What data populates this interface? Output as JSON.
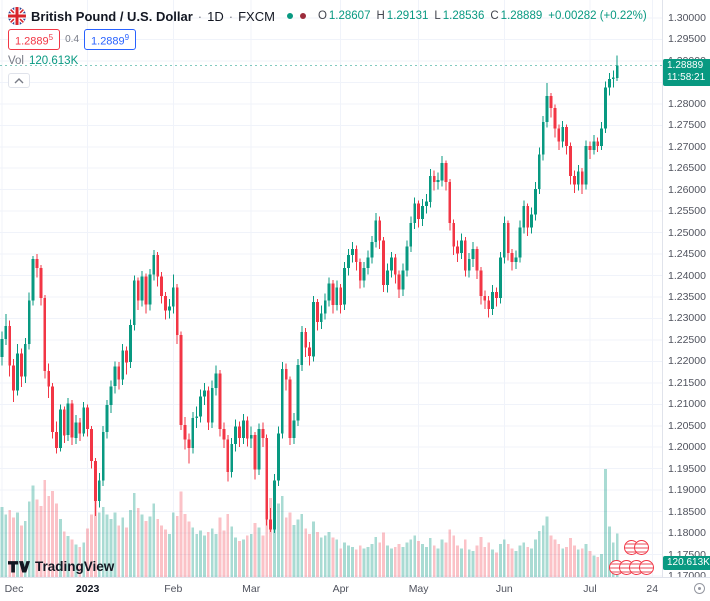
{
  "header": {
    "title": "British Pound / U.S. Dollar",
    "sep": "·",
    "interval": "1D",
    "exchange": "FXCM",
    "ohlc": {
      "o_label": "O",
      "o_value": "1.28607",
      "h_label": "H",
      "h_value": "1.29131",
      "l_label": "L",
      "l_value": "1.28536",
      "c_label": "C",
      "c_value": "1.28889",
      "change": "+0.00282 (+0.22%)"
    },
    "sell_main": "1.2889",
    "sell_sup": "5",
    "spread": "0.4",
    "buy_main": "1.2889",
    "buy_sup": "9",
    "vol_label": "Vol",
    "vol_value": "120.613K"
  },
  "price_scale": {
    "badge_price": "1.28889",
    "badge_countdown": "11:58:21",
    "volume_badge": "120.613K"
  },
  "footer": {
    "logo_text": "TradingView"
  },
  "colors": {
    "up": "#089981",
    "down": "#f23645",
    "buy_blue": "#2962ff",
    "sell_red": "#f23645"
  },
  "chart_data": {
    "type": "candlestick",
    "symbol": "GBPUSD",
    "title": "British Pound / U.S. Dollar, 1D, FXCM",
    "legend_volume": "Vol 120.613K",
    "columns": [
      "open",
      "high",
      "low",
      "close",
      "volume_k"
    ],
    "y_axis": {
      "min": 1.17,
      "max": 1.3,
      "step": 0.005
    },
    "vol_axis": {
      "max_k": 320
    },
    "slots": 170,
    "up_color": "#089981",
    "down_color": "#f23645",
    "vol_up_color": "rgba(8,153,129,0.35)",
    "vol_down_color": "rgba(242,54,69,0.30)",
    "last": {
      "open": 1.28607,
      "high": 1.29131,
      "low": 1.28536,
      "close": 1.28889,
      "change": "+0.00282",
      "change_pct": "+0.22%"
    },
    "y_ticks": [
      "1.30000",
      "1.29500",
      "1.29000",
      "1.28500",
      "1.28000",
      "1.27500",
      "1.27000",
      "1.26500",
      "1.26000",
      "1.25500",
      "1.25000",
      "1.24500",
      "1.24000",
      "1.23500",
      "1.23000",
      "1.22500",
      "1.22000",
      "1.21500",
      "1.21000",
      "1.20500",
      "1.20000",
      "1.19500",
      "1.19000",
      "1.18500",
      "1.18000",
      "1.17500",
      "1.17000"
    ],
    "x_ticks": [
      {
        "label": "Dec",
        "slot": 0
      },
      {
        "label": "2023",
        "slot": 22,
        "year": true
      },
      {
        "label": "Feb",
        "slot": 44
      },
      {
        "label": "Mar",
        "slot": 64
      },
      {
        "label": "Apr",
        "slot": 87
      },
      {
        "label": "May",
        "slot": 107
      },
      {
        "label": "Jun",
        "slot": 129
      },
      {
        "label": "Jul",
        "slot": 151
      },
      {
        "label": "24",
        "slot": 167
      }
    ],
    "candles": [
      [
        1.221,
        1.227,
        1.219,
        1.2252,
        195
      ],
      [
        1.2252,
        1.231,
        1.2238,
        1.2282,
        174
      ],
      [
        1.2282,
        1.2295,
        1.2165,
        1.219,
        186
      ],
      [
        1.219,
        1.2205,
        1.2105,
        1.2132,
        165
      ],
      [
        1.2132,
        1.224,
        1.212,
        1.2218,
        180
      ],
      [
        1.2218,
        1.223,
        1.214,
        1.2165,
        144
      ],
      [
        1.2165,
        1.2255,
        1.215,
        1.224,
        156
      ],
      [
        1.224,
        1.236,
        1.2228,
        1.2342,
        210
      ],
      [
        1.2342,
        1.2446,
        1.233,
        1.2438,
        255
      ],
      [
        1.2438,
        1.245,
        1.2395,
        1.2418,
        216
      ],
      [
        1.2418,
        1.2425,
        1.233,
        1.2348,
        198
      ],
      [
        1.2348,
        1.2355,
        1.216,
        1.2178,
        270
      ],
      [
        1.2178,
        1.2195,
        1.2115,
        1.2142,
        225
      ],
      [
        1.2142,
        1.215,
        1.202,
        1.2035,
        240
      ],
      [
        1.2035,
        1.206,
        1.1985,
        1.1998,
        204
      ],
      [
        1.1998,
        1.21,
        1.199,
        1.2088,
        162
      ],
      [
        1.2088,
        1.2095,
        1.201,
        1.2028,
        126
      ],
      [
        1.2028,
        1.2115,
        1.2015,
        1.2102,
        114
      ],
      [
        1.2102,
        1.211,
        1.2005,
        1.2022,
        105
      ],
      [
        1.2022,
        1.2075,
        1.2008,
        1.2058,
        90
      ],
      [
        1.2058,
        1.2068,
        1.2015,
        1.2032,
        84
      ],
      [
        1.2032,
        1.2105,
        1.2025,
        1.2092,
        96
      ],
      [
        1.2092,
        1.21,
        1.2025,
        1.2042,
        135
      ],
      [
        1.2042,
        1.205,
        1.195,
        1.1968,
        174
      ],
      [
        1.1968,
        1.1975,
        1.184,
        1.1875,
        216
      ],
      [
        1.1875,
        1.194,
        1.186,
        1.1922,
        180
      ],
      [
        1.1922,
        1.205,
        1.191,
        1.2035,
        195
      ],
      [
        1.2035,
        1.211,
        1.202,
        1.2098,
        174
      ],
      [
        1.2098,
        1.2155,
        1.208,
        1.2142,
        162
      ],
      [
        1.2142,
        1.22,
        1.2125,
        1.2188,
        180
      ],
      [
        1.2188,
        1.2198,
        1.2135,
        1.2158,
        144
      ],
      [
        1.2158,
        1.224,
        1.2145,
        1.2225,
        165
      ],
      [
        1.2225,
        1.2235,
        1.217,
        1.2198,
        138
      ],
      [
        1.2198,
        1.2298,
        1.2185,
        1.2285,
        186
      ],
      [
        1.2285,
        1.24,
        1.2272,
        1.2388,
        234
      ],
      [
        1.2388,
        1.2395,
        1.232,
        1.2342,
        192
      ],
      [
        1.2342,
        1.241,
        1.2328,
        1.2398,
        174
      ],
      [
        1.2398,
        1.2405,
        1.2312,
        1.2332,
        156
      ],
      [
        1.2332,
        1.2415,
        1.2318,
        1.2402,
        168
      ],
      [
        1.2402,
        1.246,
        1.2388,
        1.2448,
        204
      ],
      [
        1.2448,
        1.2455,
        1.2375,
        1.2398,
        162
      ],
      [
        1.2398,
        1.2408,
        1.2335,
        1.2352,
        144
      ],
      [
        1.2352,
        1.2362,
        1.2298,
        1.2318,
        132
      ],
      [
        1.2318,
        1.2345,
        1.23,
        1.2328,
        120
      ],
      [
        1.2328,
        1.2402,
        1.2312,
        1.2372,
        180
      ],
      [
        1.2372,
        1.238,
        1.224,
        1.2262,
        170
      ],
      [
        1.2262,
        1.227,
        1.204,
        1.2052,
        238
      ],
      [
        1.2052,
        1.207,
        1.1995,
        1.2018,
        175
      ],
      [
        1.2018,
        1.2032,
        1.1962,
        1.1998,
        155
      ],
      [
        1.1998,
        1.2082,
        1.1985,
        1.2068,
        138
      ],
      [
        1.2068,
        1.2095,
        1.2045,
        1.2072,
        120
      ],
      [
        1.2072,
        1.2135,
        1.2058,
        1.2118,
        130
      ],
      [
        1.2118,
        1.215,
        1.2098,
        1.2132,
        115
      ],
      [
        1.2132,
        1.2142,
        1.204,
        1.2058,
        125
      ],
      [
        1.2058,
        1.2155,
        1.2045,
        1.2138,
        135
      ],
      [
        1.2138,
        1.219,
        1.212,
        1.2172,
        120
      ],
      [
        1.2172,
        1.218,
        1.2025,
        1.2042,
        165
      ],
      [
        1.2042,
        1.2058,
        1.1998,
        1.2018,
        130
      ],
      [
        1.2018,
        1.2028,
        1.192,
        1.1942,
        175
      ],
      [
        1.1942,
        1.2022,
        1.193,
        1.2008,
        140
      ],
      [
        1.2008,
        1.2065,
        1.199,
        1.2048,
        110
      ],
      [
        1.2048,
        1.206,
        1.2,
        1.2022,
        100
      ],
      [
        1.2022,
        1.2078,
        1.2008,
        1.2062,
        105
      ],
      [
        1.2062,
        1.2072,
        1.2002,
        1.202,
        115
      ],
      [
        1.202,
        1.2048,
        1.1998,
        1.2028,
        120
      ],
      [
        1.2028,
        1.2035,
        1.1925,
        1.1948,
        150
      ],
      [
        1.1948,
        1.2055,
        1.1935,
        1.2042,
        138
      ],
      [
        1.2042,
        1.2058,
        1.2,
        1.2022,
        115
      ],
      [
        1.2022,
        1.203,
        1.1818,
        1.1832,
        238
      ],
      [
        1.1832,
        1.1858,
        1.1802,
        1.1808,
        220
      ],
      [
        1.1808,
        1.1938,
        1.18,
        1.1922,
        190
      ],
      [
        1.1922,
        1.2048,
        1.191,
        1.2032,
        205
      ],
      [
        1.2032,
        1.2198,
        1.202,
        1.2182,
        225
      ],
      [
        1.2182,
        1.2195,
        1.2132,
        1.2158,
        165
      ],
      [
        1.2158,
        1.2165,
        1.2005,
        1.2022,
        180
      ],
      [
        1.2022,
        1.208,
        1.2008,
        1.2062,
        145
      ],
      [
        1.2062,
        1.2205,
        1.205,
        1.2192,
        160
      ],
      [
        1.2192,
        1.2282,
        1.2178,
        1.2268,
        175
      ],
      [
        1.2268,
        1.2278,
        1.221,
        1.2232,
        135
      ],
      [
        1.2232,
        1.2245,
        1.219,
        1.2212,
        120
      ],
      [
        1.2212,
        1.2352,
        1.22,
        1.2338,
        155
      ],
      [
        1.2338,
        1.2345,
        1.2272,
        1.2292,
        125
      ],
      [
        1.2292,
        1.233,
        1.2275,
        1.2312,
        110
      ],
      [
        1.2312,
        1.2358,
        1.2298,
        1.2342,
        115
      ],
      [
        1.2342,
        1.2395,
        1.2328,
        1.2382,
        125
      ],
      [
        1.2382,
        1.239,
        1.2312,
        1.2332,
        110
      ],
      [
        1.2332,
        1.2388,
        1.2318,
        1.2372,
        105
      ],
      [
        1.2372,
        1.238,
        1.2312,
        1.2332,
        80
      ],
      [
        1.2332,
        1.2432,
        1.232,
        1.2418,
        96
      ],
      [
        1.2418,
        1.2462,
        1.24,
        1.2448,
        88
      ],
      [
        1.2448,
        1.2478,
        1.243,
        1.2462,
        84
      ],
      [
        1.2462,
        1.247,
        1.2412,
        1.2432,
        76
      ],
      [
        1.2432,
        1.244,
        1.237,
        1.2388,
        88
      ],
      [
        1.2388,
        1.2432,
        1.2372,
        1.2418,
        80
      ],
      [
        1.2418,
        1.2458,
        1.2402,
        1.2442,
        84
      ],
      [
        1.2442,
        1.2492,
        1.2428,
        1.2478,
        92
      ],
      [
        1.2478,
        1.2546,
        1.2465,
        1.2528,
        112
      ],
      [
        1.2528,
        1.2538,
        1.2462,
        1.2482,
        96
      ],
      [
        1.2482,
        1.249,
        1.2362,
        1.2378,
        124
      ],
      [
        1.2378,
        1.2428,
        1.236,
        1.2412,
        88
      ],
      [
        1.2412,
        1.2455,
        1.2395,
        1.2442,
        80
      ],
      [
        1.2442,
        1.245,
        1.2382,
        1.2402,
        84
      ],
      [
        1.2402,
        1.2412,
        1.2348,
        1.2368,
        92
      ],
      [
        1.2368,
        1.2428,
        1.2352,
        1.2412,
        84
      ],
      [
        1.2412,
        1.2482,
        1.2398,
        1.2468,
        96
      ],
      [
        1.2468,
        1.2538,
        1.2455,
        1.2522,
        104
      ],
      [
        1.2522,
        1.2582,
        1.2508,
        1.2568,
        116
      ],
      [
        1.2568,
        1.2575,
        1.2512,
        1.2532,
        100
      ],
      [
        1.2532,
        1.2578,
        1.2515,
        1.2562,
        92
      ],
      [
        1.2562,
        1.259,
        1.2545,
        1.2572,
        84
      ],
      [
        1.2572,
        1.2648,
        1.2558,
        1.2632,
        108
      ],
      [
        1.2632,
        1.2645,
        1.2598,
        1.2618,
        88
      ],
      [
        1.2618,
        1.264,
        1.26,
        1.2622,
        80
      ],
      [
        1.2622,
        1.2679,
        1.2608,
        1.2662,
        104
      ],
      [
        1.2662,
        1.2668,
        1.2598,
        1.2618,
        96
      ],
      [
        1.2618,
        1.2625,
        1.2505,
        1.2522,
        132
      ],
      [
        1.2522,
        1.253,
        1.2448,
        1.2468,
        116
      ],
      [
        1.2468,
        1.2482,
        1.2432,
        1.2452,
        88
      ],
      [
        1.2452,
        1.2498,
        1.2438,
        1.2482,
        80
      ],
      [
        1.2482,
        1.249,
        1.2398,
        1.2412,
        104
      ],
      [
        1.2412,
        1.2452,
        1.2395,
        1.2438,
        76
      ],
      [
        1.2438,
        1.2478,
        1.242,
        1.2462,
        72
      ],
      [
        1.2462,
        1.2468,
        1.2392,
        1.2412,
        88
      ],
      [
        1.2412,
        1.242,
        1.2332,
        1.2352,
        112
      ],
      [
        1.2352,
        1.2365,
        1.2322,
        1.2342,
        84
      ],
      [
        1.2342,
        1.2352,
        1.2302,
        1.2322,
        96
      ],
      [
        1.2322,
        1.2378,
        1.2308,
        1.2362,
        76
      ],
      [
        1.2362,
        1.2372,
        1.2328,
        1.2348,
        68
      ],
      [
        1.2348,
        1.2455,
        1.2335,
        1.2442,
        92
      ],
      [
        1.2442,
        1.2538,
        1.2428,
        1.2522,
        104
      ],
      [
        1.2522,
        1.2528,
        1.2435,
        1.2452,
        92
      ],
      [
        1.2452,
        1.2462,
        1.2412,
        1.2432,
        80
      ],
      [
        1.2432,
        1.2458,
        1.2415,
        1.2442,
        72
      ],
      [
        1.2442,
        1.2528,
        1.243,
        1.2512,
        88
      ],
      [
        1.2512,
        1.2575,
        1.2498,
        1.2562,
        96
      ],
      [
        1.2562,
        1.2568,
        1.2492,
        1.2512,
        84
      ],
      [
        1.2512,
        1.2558,
        1.2498,
        1.2542,
        80
      ],
      [
        1.2542,
        1.2618,
        1.2528,
        1.2602,
        104
      ],
      [
        1.2602,
        1.2698,
        1.259,
        1.2682,
        128
      ],
      [
        1.2682,
        1.2772,
        1.2668,
        1.2758,
        144
      ],
      [
        1.2758,
        1.2848,
        1.2745,
        1.2818,
        168
      ],
      [
        1.2818,
        1.2825,
        1.2768,
        1.279,
        116
      ],
      [
        1.279,
        1.2798,
        1.2722,
        1.2742,
        104
      ],
      [
        1.2742,
        1.2752,
        1.2692,
        1.2712,
        92
      ],
      [
        1.2712,
        1.276,
        1.2698,
        1.2746,
        80
      ],
      [
        1.2746,
        1.2752,
        1.2682,
        1.2702,
        84
      ],
      [
        1.2702,
        1.271,
        1.2612,
        1.2632,
        108
      ],
      [
        1.2632,
        1.2645,
        1.2592,
        1.2612,
        88
      ],
      [
        1.2612,
        1.2658,
        1.2598,
        1.2642,
        76
      ],
      [
        1.2642,
        1.265,
        1.259,
        1.2612,
        80
      ],
      [
        1.2612,
        1.2715,
        1.26,
        1.2702,
        92
      ],
      [
        1.2702,
        1.2712,
        1.2672,
        1.2692,
        72
      ],
      [
        1.2692,
        1.2728,
        1.2682,
        1.2712,
        60
      ],
      [
        1.2712,
        1.2722,
        1.2688,
        1.2702,
        56
      ],
      [
        1.2702,
        1.2758,
        1.2692,
        1.2742,
        64
      ],
      [
        1.2742,
        1.2852,
        1.2732,
        1.2838,
        300
      ],
      [
        1.2838,
        1.2872,
        1.282,
        1.2858,
        140
      ],
      [
        1.2858,
        1.2878,
        1.2838,
        1.2861,
        96
      ],
      [
        1.28607,
        1.29131,
        1.28536,
        1.28889,
        120.613
      ]
    ]
  }
}
